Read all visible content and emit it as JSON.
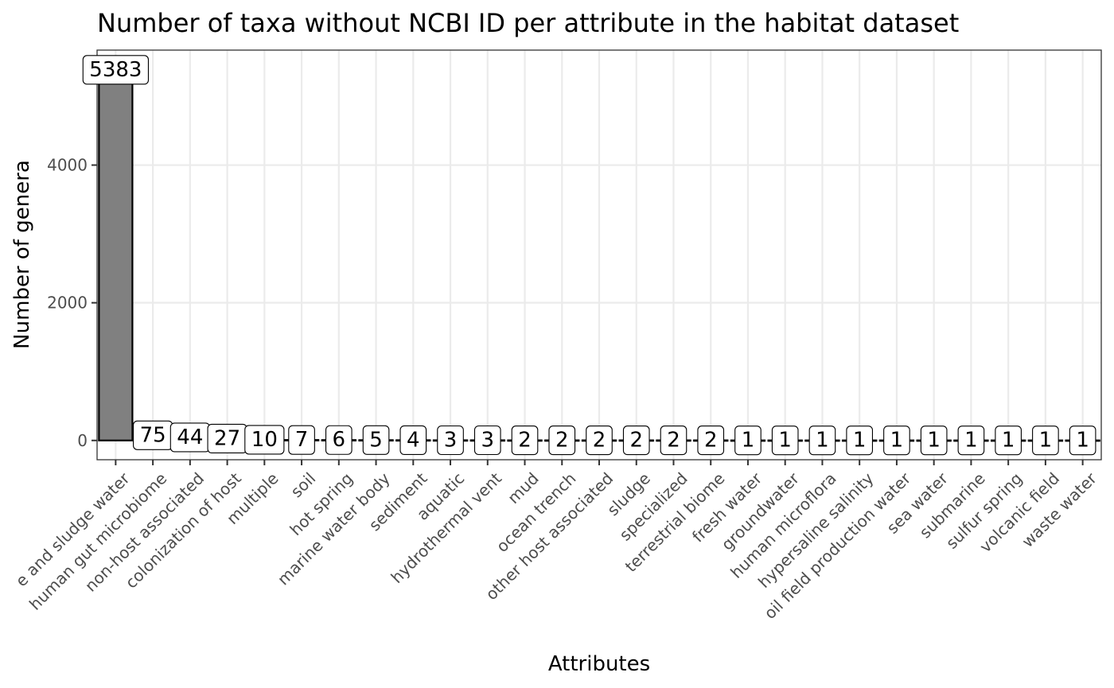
{
  "chart_data": {
    "type": "bar",
    "title": "Number of taxa without NCBI ID per attribute in the habitat dataset",
    "xlabel": "Attributes",
    "ylabel": "Number of genera",
    "ylim": [
      -280,
      5670
    ],
    "yticks": [
      0,
      2000,
      4000
    ],
    "grid": true,
    "categories": [
      "e and sludge water",
      "human gut microbiome",
      "non-host associated",
      "colonization of host",
      "multiple",
      "soil",
      "hot spring",
      "marine water body",
      "sediment",
      "aquatic",
      "hydrothermal vent",
      "mud",
      "ocean trench",
      "other host associated",
      "sludge",
      "specialized",
      "terrestrial biome",
      "fresh water",
      "groundwater",
      "human microflora",
      "hypersaline salinity",
      "oil field production water",
      "sea water",
      "submarine",
      "sulfur spring",
      "volcanic field",
      "waste water"
    ],
    "values": [
      5383,
      75,
      44,
      27,
      10,
      7,
      6,
      5,
      4,
      3,
      3,
      2,
      2,
      2,
      2,
      2,
      2,
      1,
      1,
      1,
      1,
      1,
      1,
      1,
      1,
      1,
      1
    ],
    "labels": [
      "5383",
      "75",
      "44",
      "27",
      "10",
      "7",
      "6",
      "5",
      "4",
      "3",
      "3",
      "2",
      "2",
      "2",
      "2",
      "2",
      "2",
      "1",
      "1",
      "1",
      "1",
      "1",
      "1",
      "1",
      "1",
      "1",
      "1"
    ],
    "colors": {
      "bar_fill": "#808080",
      "bar_stroke": "#000000",
      "grid": "#ebebeb",
      "panel_border": "#333333"
    }
  }
}
